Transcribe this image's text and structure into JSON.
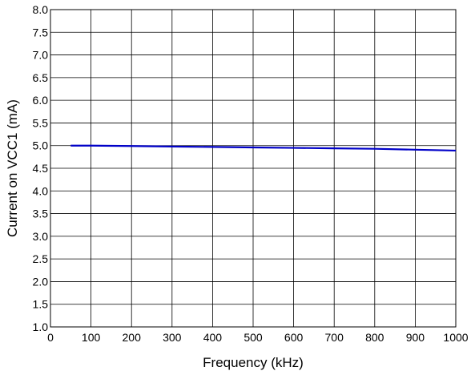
{
  "chart_data": {
    "type": "line",
    "title": "",
    "xlabel": "Frequency (kHz)",
    "ylabel": "Current on VCC1 (mA)",
    "xlim": [
      0,
      1000
    ],
    "ylim": [
      1.0,
      8.0
    ],
    "xticks": [
      0,
      100,
      200,
      300,
      400,
      500,
      600,
      700,
      800,
      900,
      1000
    ],
    "yticks": [
      1.0,
      1.5,
      2.0,
      2.5,
      3.0,
      3.5,
      4.0,
      4.5,
      5.0,
      5.5,
      6.0,
      6.5,
      7.0,
      7.5,
      8.0
    ],
    "xtick_labels": [
      "0",
      "100",
      "200",
      "300",
      "400",
      "500",
      "600",
      "700",
      "800",
      "900",
      "1000"
    ],
    "ytick_labels": [
      "1.0",
      "1.5",
      "2.0",
      "2.5",
      "3.0",
      "3.5",
      "4.0",
      "4.5",
      "5.0",
      "5.5",
      "6.0",
      "6.5",
      "7.0",
      "7.5",
      "8.0"
    ],
    "grid": true,
    "legend": "none",
    "series": [
      {
        "color": "#0000c8",
        "x": [
          50,
          100,
          200,
          300,
          400,
          500,
          600,
          700,
          800,
          900,
          1000
        ],
        "y": [
          5.0,
          5.0,
          4.99,
          4.98,
          4.97,
          4.96,
          4.95,
          4.94,
          4.93,
          4.91,
          4.89
        ]
      }
    ]
  }
}
